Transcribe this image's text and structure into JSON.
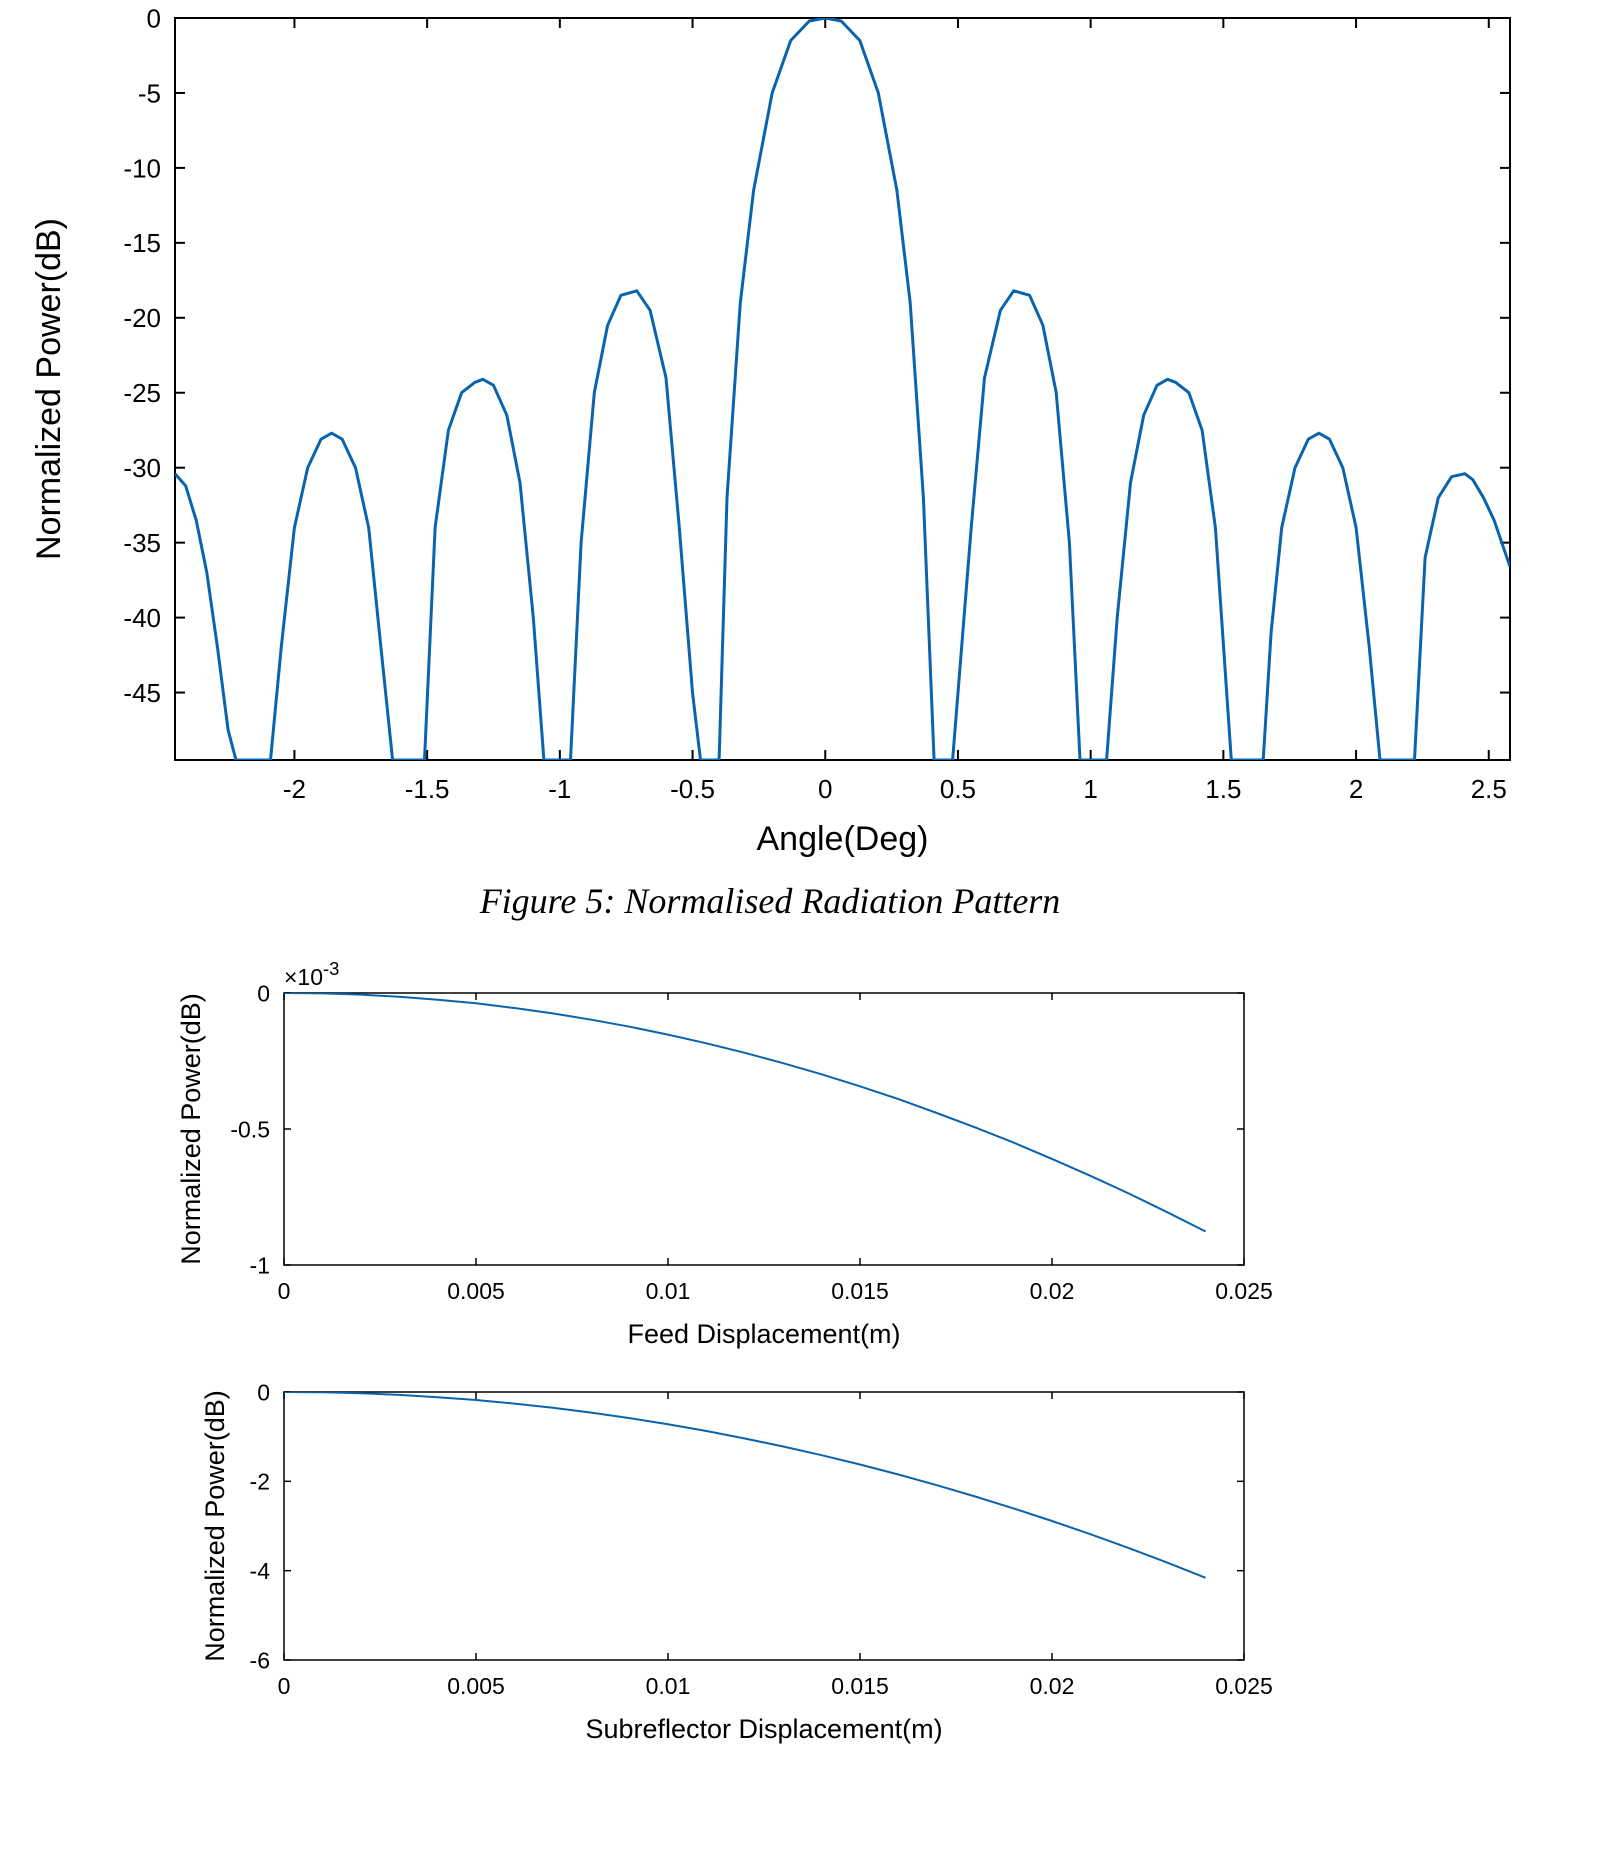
{
  "caption": "Figure 5:  Normalised Radiation Pattern",
  "chart_data": [
    {
      "type": "line",
      "xlabel": "Angle(Deg)",
      "ylabel": "Normalized Power(dB)",
      "xlim": [
        -2.45,
        2.58
      ],
      "ylim": [
        -49.5,
        0
      ],
      "xticks": [
        -2,
        -1.5,
        -1,
        -0.5,
        0,
        0.5,
        1,
        1.5,
        2,
        2.5
      ],
      "xtick_labels": [
        "-2",
        "-1.5",
        "-1",
        "-0.5",
        "0",
        "0.5",
        "1",
        "1.5",
        "2",
        "2.5"
      ],
      "yticks": [
        0,
        -5,
        -10,
        -15,
        -20,
        -25,
        -30,
        -35,
        -40,
        -45
      ],
      "ytick_labels": [
        "0",
        "-5",
        "-10",
        "-15",
        "-20",
        "-25",
        "-30",
        "-35",
        "-40",
        "-45"
      ],
      "grid": false,
      "color": "#0a64ad",
      "series": [
        {
          "x": [
            -2.45,
            -2.41,
            -2.37,
            -2.33,
            -2.29,
            -2.25,
            -2.22,
            -2.09,
            -2.05,
            -2.0,
            -1.95,
            -1.9,
            -1.86,
            -1.82,
            -1.77,
            -1.72,
            -1.68,
            -1.63,
            -1.51,
            -1.47,
            -1.42,
            -1.37,
            -1.32,
            -1.29,
            -1.25,
            -1.2,
            -1.15,
            -1.1,
            -1.06,
            -0.96,
            -0.92,
            -0.87,
            -0.82,
            -0.77,
            -0.71,
            -0.66,
            -0.6,
            -0.55,
            -0.5,
            -0.47,
            -0.4,
            -0.37,
            -0.32,
            -0.27,
            -0.2,
            -0.13,
            -0.06,
            0.0,
            0.06,
            0.13,
            0.2,
            0.27,
            0.32,
            0.37,
            0.41,
            0.48,
            0.5,
            0.55,
            0.6,
            0.66,
            0.71,
            0.77,
            0.82,
            0.87,
            0.92,
            0.96,
            1.06,
            1.1,
            1.15,
            1.2,
            1.25,
            1.29,
            1.32,
            1.37,
            1.42,
            1.47,
            1.53,
            1.65,
            1.68,
            1.72,
            1.77,
            1.82,
            1.86,
            1.9,
            1.95,
            2.0,
            2.05,
            2.09,
            2.22,
            2.26,
            2.31,
            2.36,
            2.41,
            2.44,
            2.48,
            2.52,
            2.58
          ],
          "y": [
            -30.4,
            -31.2,
            -33.5,
            -37.0,
            -42.0,
            -47.5,
            -49.5,
            -49.5,
            -42.0,
            -34.0,
            -30.0,
            -28.1,
            -27.7,
            -28.1,
            -30.0,
            -34.0,
            -41.0,
            -49.5,
            -49.5,
            -34.0,
            -27.5,
            -25.0,
            -24.3,
            -24.1,
            -24.5,
            -26.5,
            -31.0,
            -40.0,
            -49.5,
            -49.5,
            -35.0,
            -25.0,
            -20.5,
            -18.5,
            -18.2,
            -19.5,
            -24.0,
            -34.0,
            -45.0,
            -49.5,
            -49.5,
            -32.0,
            -19.0,
            -11.5,
            -5.0,
            -1.5,
            -0.2,
            0.0,
            -0.2,
            -1.5,
            -5.0,
            -11.5,
            -19.0,
            -32.0,
            -49.5,
            -49.5,
            -45.0,
            -34.0,
            -24.0,
            -19.5,
            -18.2,
            -18.5,
            -20.5,
            -25.0,
            -35.0,
            -49.5,
            -49.5,
            -40.0,
            -31.0,
            -26.5,
            -24.5,
            -24.1,
            -24.3,
            -25.0,
            -27.5,
            -34.0,
            -49.5,
            -49.5,
            -41.0,
            -34.0,
            -30.0,
            -28.1,
            -27.7,
            -28.1,
            -30.0,
            -34.0,
            -42.0,
            -49.5,
            -49.5,
            -36.0,
            -32.0,
            -30.6,
            -30.4,
            -30.8,
            -32.0,
            -33.5,
            -36.6
          ]
        }
      ]
    },
    {
      "type": "line",
      "xlabel": "Feed Displacement(m)",
      "ylabel": "Normalized Power(dB)",
      "exponent_label": "×10",
      "exponent_power": "-3",
      "xlim": [
        0,
        0.025
      ],
      "ylim": [
        -1,
        0
      ],
      "xticks": [
        0,
        0.005,
        0.01,
        0.015,
        0.02,
        0.025
      ],
      "xtick_labels": [
        "0",
        "0.005",
        "0.01",
        "0.015",
        "0.02",
        "0.025"
      ],
      "yticks": [
        0,
        -0.5,
        -1
      ],
      "ytick_labels": [
        "0",
        "-0.5",
        "-1"
      ],
      "grid": false,
      "color": "#0a64ad",
      "series": [
        {
          "x": [
            0,
            0.001,
            0.002,
            0.003,
            0.004,
            0.005,
            0.006,
            0.007,
            0.008,
            0.009,
            0.01,
            0.011,
            0.012,
            0.013,
            0.014,
            0.015,
            0.016,
            0.017,
            0.018,
            0.019,
            0.02,
            0.021,
            0.022,
            0.023,
            0.024
          ],
          "y": [
            0,
            -0.0015,
            -0.006,
            -0.014,
            -0.025,
            -0.038,
            -0.055,
            -0.075,
            -0.098,
            -0.124,
            -0.153,
            -0.185,
            -0.22,
            -0.258,
            -0.299,
            -0.343,
            -0.39,
            -0.441,
            -0.494,
            -0.55,
            -0.61,
            -0.672,
            -0.737,
            -0.806,
            -0.877
          ]
        }
      ]
    },
    {
      "type": "line",
      "xlabel": "Subreflector Displacement(m)",
      "ylabel": "Normalized Power(dB)",
      "xlim": [
        0,
        0.025
      ],
      "ylim": [
        -6,
        0
      ],
      "xticks": [
        0,
        0.005,
        0.01,
        0.015,
        0.02,
        0.025
      ],
      "xtick_labels": [
        "0",
        "0.005",
        "0.01",
        "0.015",
        "0.02",
        "0.025"
      ],
      "yticks": [
        0,
        -2,
        -4,
        -6
      ],
      "ytick_labels": [
        "0",
        "-2",
        "-4",
        "-6"
      ],
      "grid": false,
      "color": "#0a64ad",
      "series": [
        {
          "x": [
            0,
            0.001,
            0.002,
            0.003,
            0.004,
            0.005,
            0.006,
            0.007,
            0.008,
            0.009,
            0.01,
            0.011,
            0.012,
            0.013,
            0.014,
            0.015,
            0.016,
            0.017,
            0.018,
            0.019,
            0.02,
            0.021,
            0.022,
            0.023,
            0.024
          ],
          "y": [
            0,
            -0.007,
            -0.029,
            -0.065,
            -0.116,
            -0.18,
            -0.26,
            -0.354,
            -0.462,
            -0.585,
            -0.722,
            -0.874,
            -1.04,
            -1.22,
            -1.415,
            -1.624,
            -1.848,
            -2.086,
            -2.339,
            -2.606,
            -2.888,
            -3.184,
            -3.494,
            -3.819,
            -4.159
          ]
        }
      ]
    }
  ]
}
